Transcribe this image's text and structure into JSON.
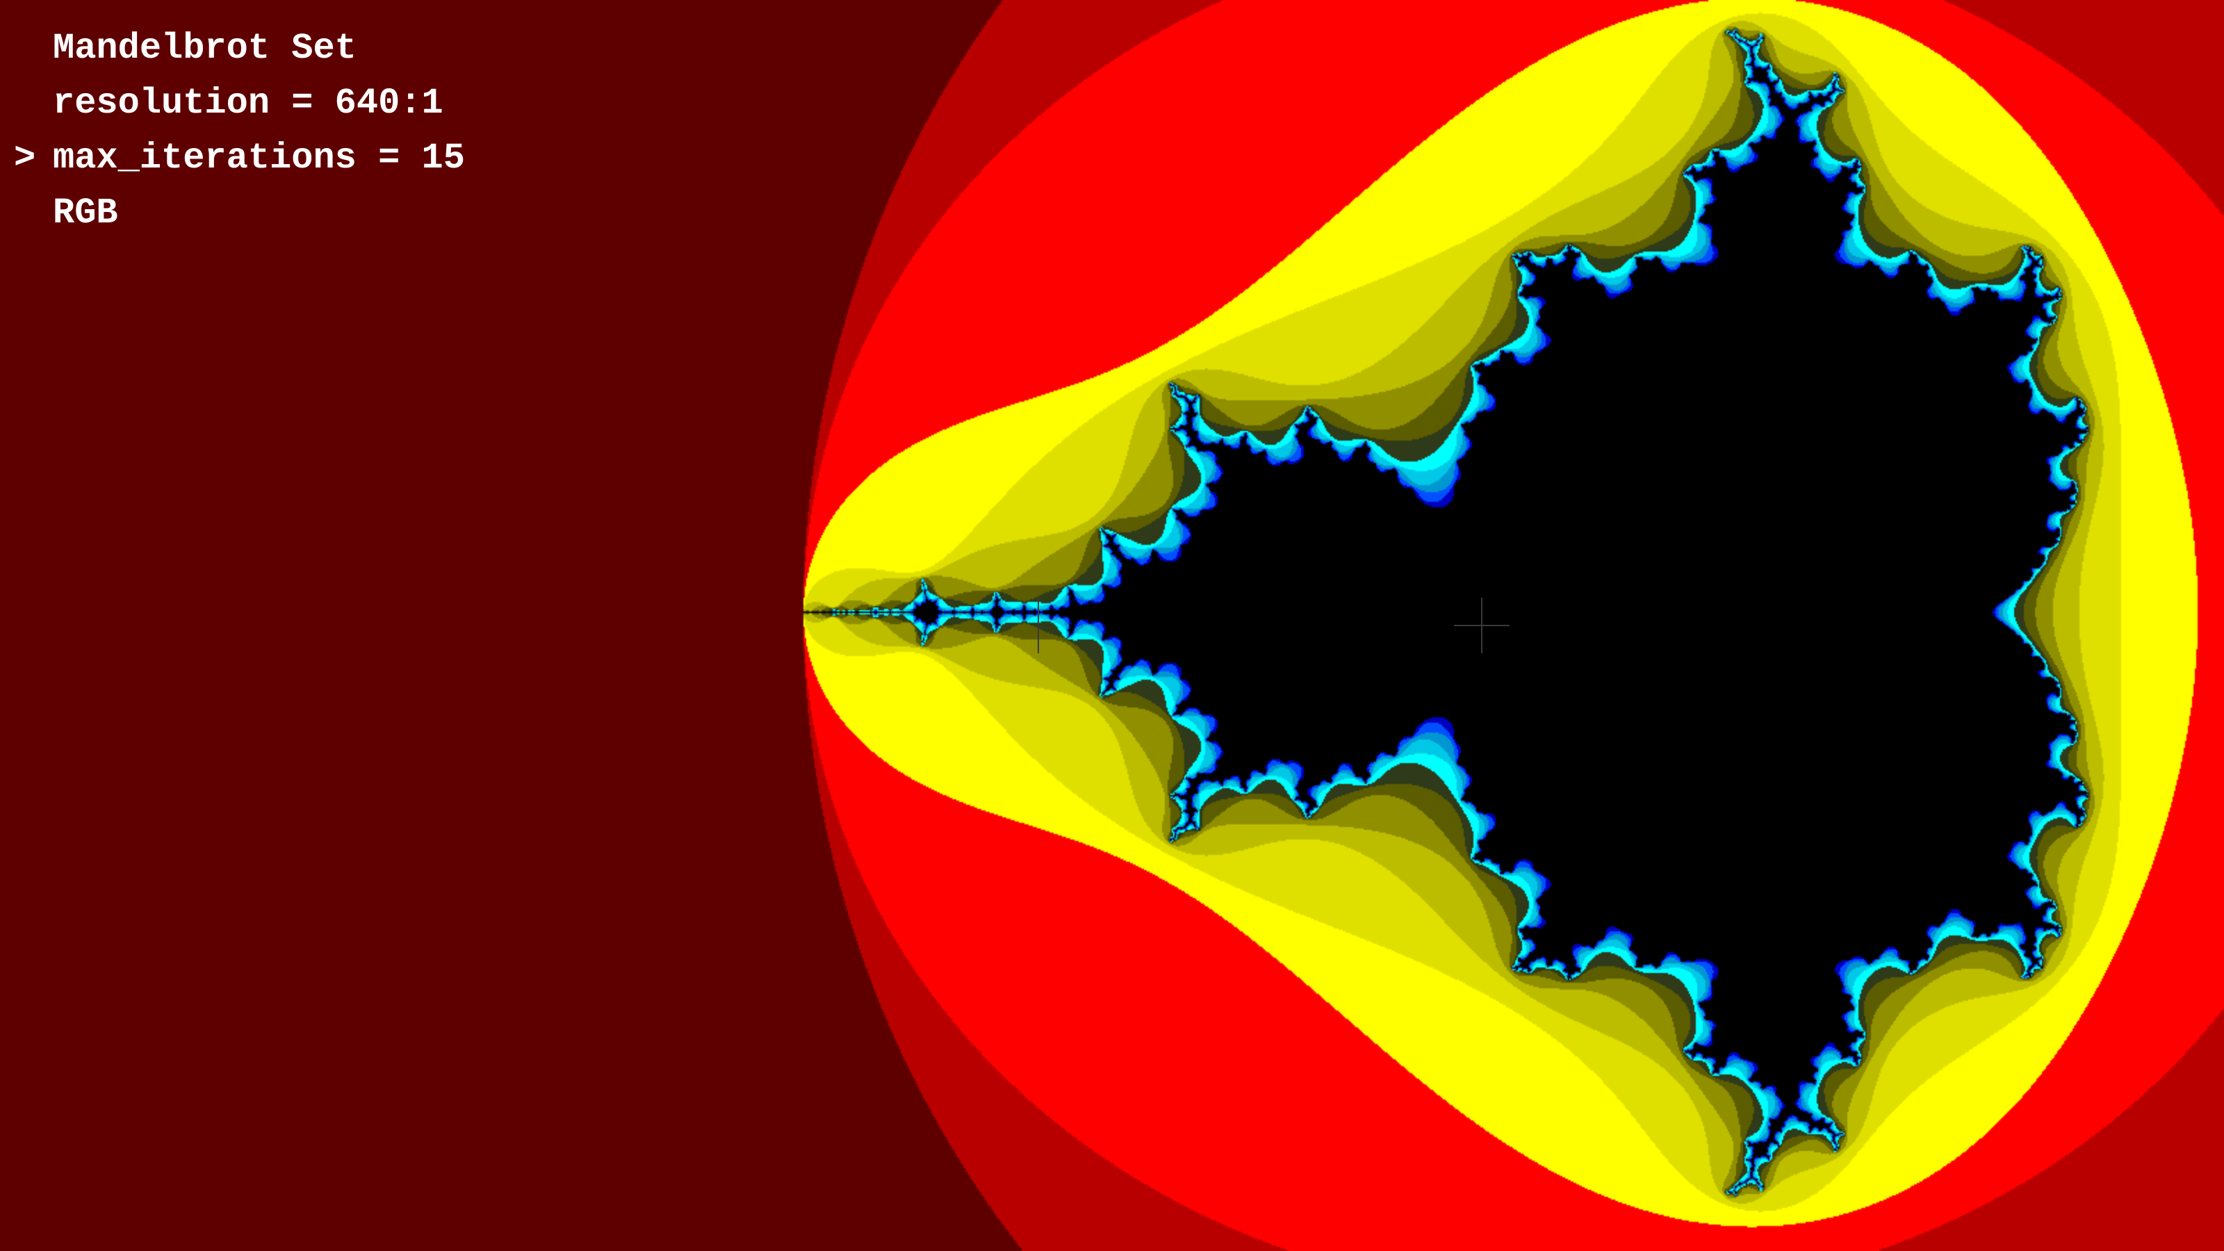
{
  "window": {
    "background": "#000000"
  },
  "menu": {
    "cursor_symbol": ">",
    "selected_index": 2,
    "items": [
      {
        "label": "Mandelbrot Set"
      },
      {
        "label": "resolution = 640:1"
      },
      {
        "label": "max_iterations = 15"
      },
      {
        "label": "RGB"
      }
    ]
  },
  "fractal": {
    "max_iterations": 15,
    "palette": [
      "#000000",
      "#5e0000",
      "#b80000",
      "#ff0000",
      "#ffff00",
      "#e0e000",
      "#bdbd00",
      "#8f8f00",
      "#5c5c00",
      "#2e3a1a",
      "#00ffff",
      "#00c8e6",
      "#0096d2",
      "#0050ff",
      "#0000c0",
      "#0000a0"
    ],
    "inside_color": "#000000",
    "crosshair_color": "#3a3a3a"
  }
}
